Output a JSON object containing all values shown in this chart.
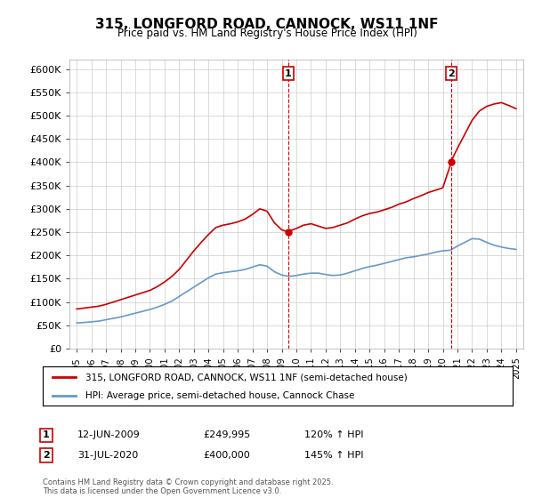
{
  "title": "315, LONGFORD ROAD, CANNOCK, WS11 1NF",
  "subtitle": "Price paid vs. HM Land Registry's House Price Index (HPI)",
  "legend_line1": "315, LONGFORD ROAD, CANNOCK, WS11 1NF (semi-detached house)",
  "legend_line2": "HPI: Average price, semi-detached house, Cannock Chase",
  "annotation1_label": "1",
  "annotation1_date": "12-JUN-2009",
  "annotation1_price": "£249,995",
  "annotation1_hpi": "120% ↑ HPI",
  "annotation1_year": 2009.44,
  "annotation1_value": 249995,
  "annotation2_label": "2",
  "annotation2_date": "31-JUL-2020",
  "annotation2_price": "£400,000",
  "annotation2_hpi": "145% ↑ HPI",
  "annotation2_year": 2020.58,
  "annotation2_value": 400000,
  "footer": "Contains HM Land Registry data © Crown copyright and database right 2025.\nThis data is licensed under the Open Government Licence v3.0.",
  "property_color": "#cc0000",
  "hpi_color": "#6699cc",
  "background_color": "#ffffff",
  "grid_color": "#cccccc",
  "ylim": [
    0,
    620000
  ],
  "yticks": [
    0,
    50000,
    100000,
    150000,
    200000,
    250000,
    300000,
    350000,
    400000,
    450000,
    500000,
    550000,
    600000
  ],
  "ytick_labels": [
    "£0",
    "£50K",
    "£100K",
    "£150K",
    "£200K",
    "£250K",
    "£300K",
    "£350K",
    "£400K",
    "£450K",
    "£500K",
    "£550K",
    "£600K"
  ],
  "xlim": [
    1994.5,
    2025.5
  ],
  "property_x": [
    1995.0,
    1995.5,
    1996.0,
    1996.5,
    1997.0,
    1997.5,
    1998.0,
    1998.5,
    1999.0,
    1999.5,
    2000.0,
    2000.5,
    2001.0,
    2001.5,
    2002.0,
    2002.5,
    2003.0,
    2003.5,
    2004.0,
    2004.5,
    2005.0,
    2005.5,
    2006.0,
    2006.5,
    2007.0,
    2007.5,
    2008.0,
    2008.5,
    2009.0,
    2009.44,
    2009.5,
    2010.0,
    2010.5,
    2011.0,
    2011.5,
    2012.0,
    2012.5,
    2013.0,
    2013.5,
    2014.0,
    2014.5,
    2015.0,
    2015.5,
    2016.0,
    2016.5,
    2017.0,
    2017.5,
    2018.0,
    2018.5,
    2019.0,
    2019.5,
    2020.0,
    2020.58,
    2020.5,
    2021.0,
    2021.5,
    2022.0,
    2022.5,
    2023.0,
    2023.5,
    2024.0,
    2024.5,
    2025.0
  ],
  "property_y": [
    85000,
    87000,
    89000,
    91000,
    95000,
    100000,
    105000,
    110000,
    115000,
    120000,
    125000,
    133000,
    143000,
    155000,
    170000,
    190000,
    210000,
    228000,
    245000,
    260000,
    265000,
    268000,
    272000,
    278000,
    288000,
    300000,
    295000,
    270000,
    255000,
    249995,
    252000,
    258000,
    265000,
    268000,
    263000,
    258000,
    260000,
    265000,
    270000,
    278000,
    285000,
    290000,
    293000,
    298000,
    303000,
    310000,
    315000,
    322000,
    328000,
    335000,
    340000,
    345000,
    400000,
    398000,
    430000,
    460000,
    490000,
    510000,
    520000,
    525000,
    528000,
    522000,
    515000
  ],
  "hpi_x": [
    1995.0,
    1995.5,
    1996.0,
    1996.5,
    1997.0,
    1997.5,
    1998.0,
    1998.5,
    1999.0,
    1999.5,
    2000.0,
    2000.5,
    2001.0,
    2001.5,
    2002.0,
    2002.5,
    2003.0,
    2003.5,
    2004.0,
    2004.5,
    2005.0,
    2005.5,
    2006.0,
    2006.5,
    2007.0,
    2007.5,
    2008.0,
    2008.5,
    2009.0,
    2009.5,
    2010.0,
    2010.5,
    2011.0,
    2011.5,
    2012.0,
    2012.5,
    2013.0,
    2013.5,
    2014.0,
    2014.5,
    2015.0,
    2015.5,
    2016.0,
    2016.5,
    2017.0,
    2017.5,
    2018.0,
    2018.5,
    2019.0,
    2019.5,
    2020.0,
    2020.5,
    2021.0,
    2021.5,
    2022.0,
    2022.5,
    2023.0,
    2023.5,
    2024.0,
    2024.5,
    2025.0
  ],
  "hpi_y": [
    55000,
    56000,
    57500,
    59000,
    62000,
    65000,
    68000,
    72000,
    76000,
    80000,
    84000,
    89000,
    95000,
    102000,
    112000,
    122000,
    132000,
    142000,
    152000,
    160000,
    163000,
    165000,
    167000,
    170000,
    175000,
    180000,
    177000,
    165000,
    158000,
    155000,
    157000,
    160000,
    162000,
    162000,
    159000,
    157000,
    158000,
    162000,
    167000,
    172000,
    176000,
    179000,
    183000,
    187000,
    191000,
    195000,
    197000,
    200000,
    203000,
    207000,
    210000,
    211000,
    220000,
    228000,
    236000,
    235000,
    228000,
    222000,
    218000,
    215000,
    213000
  ]
}
